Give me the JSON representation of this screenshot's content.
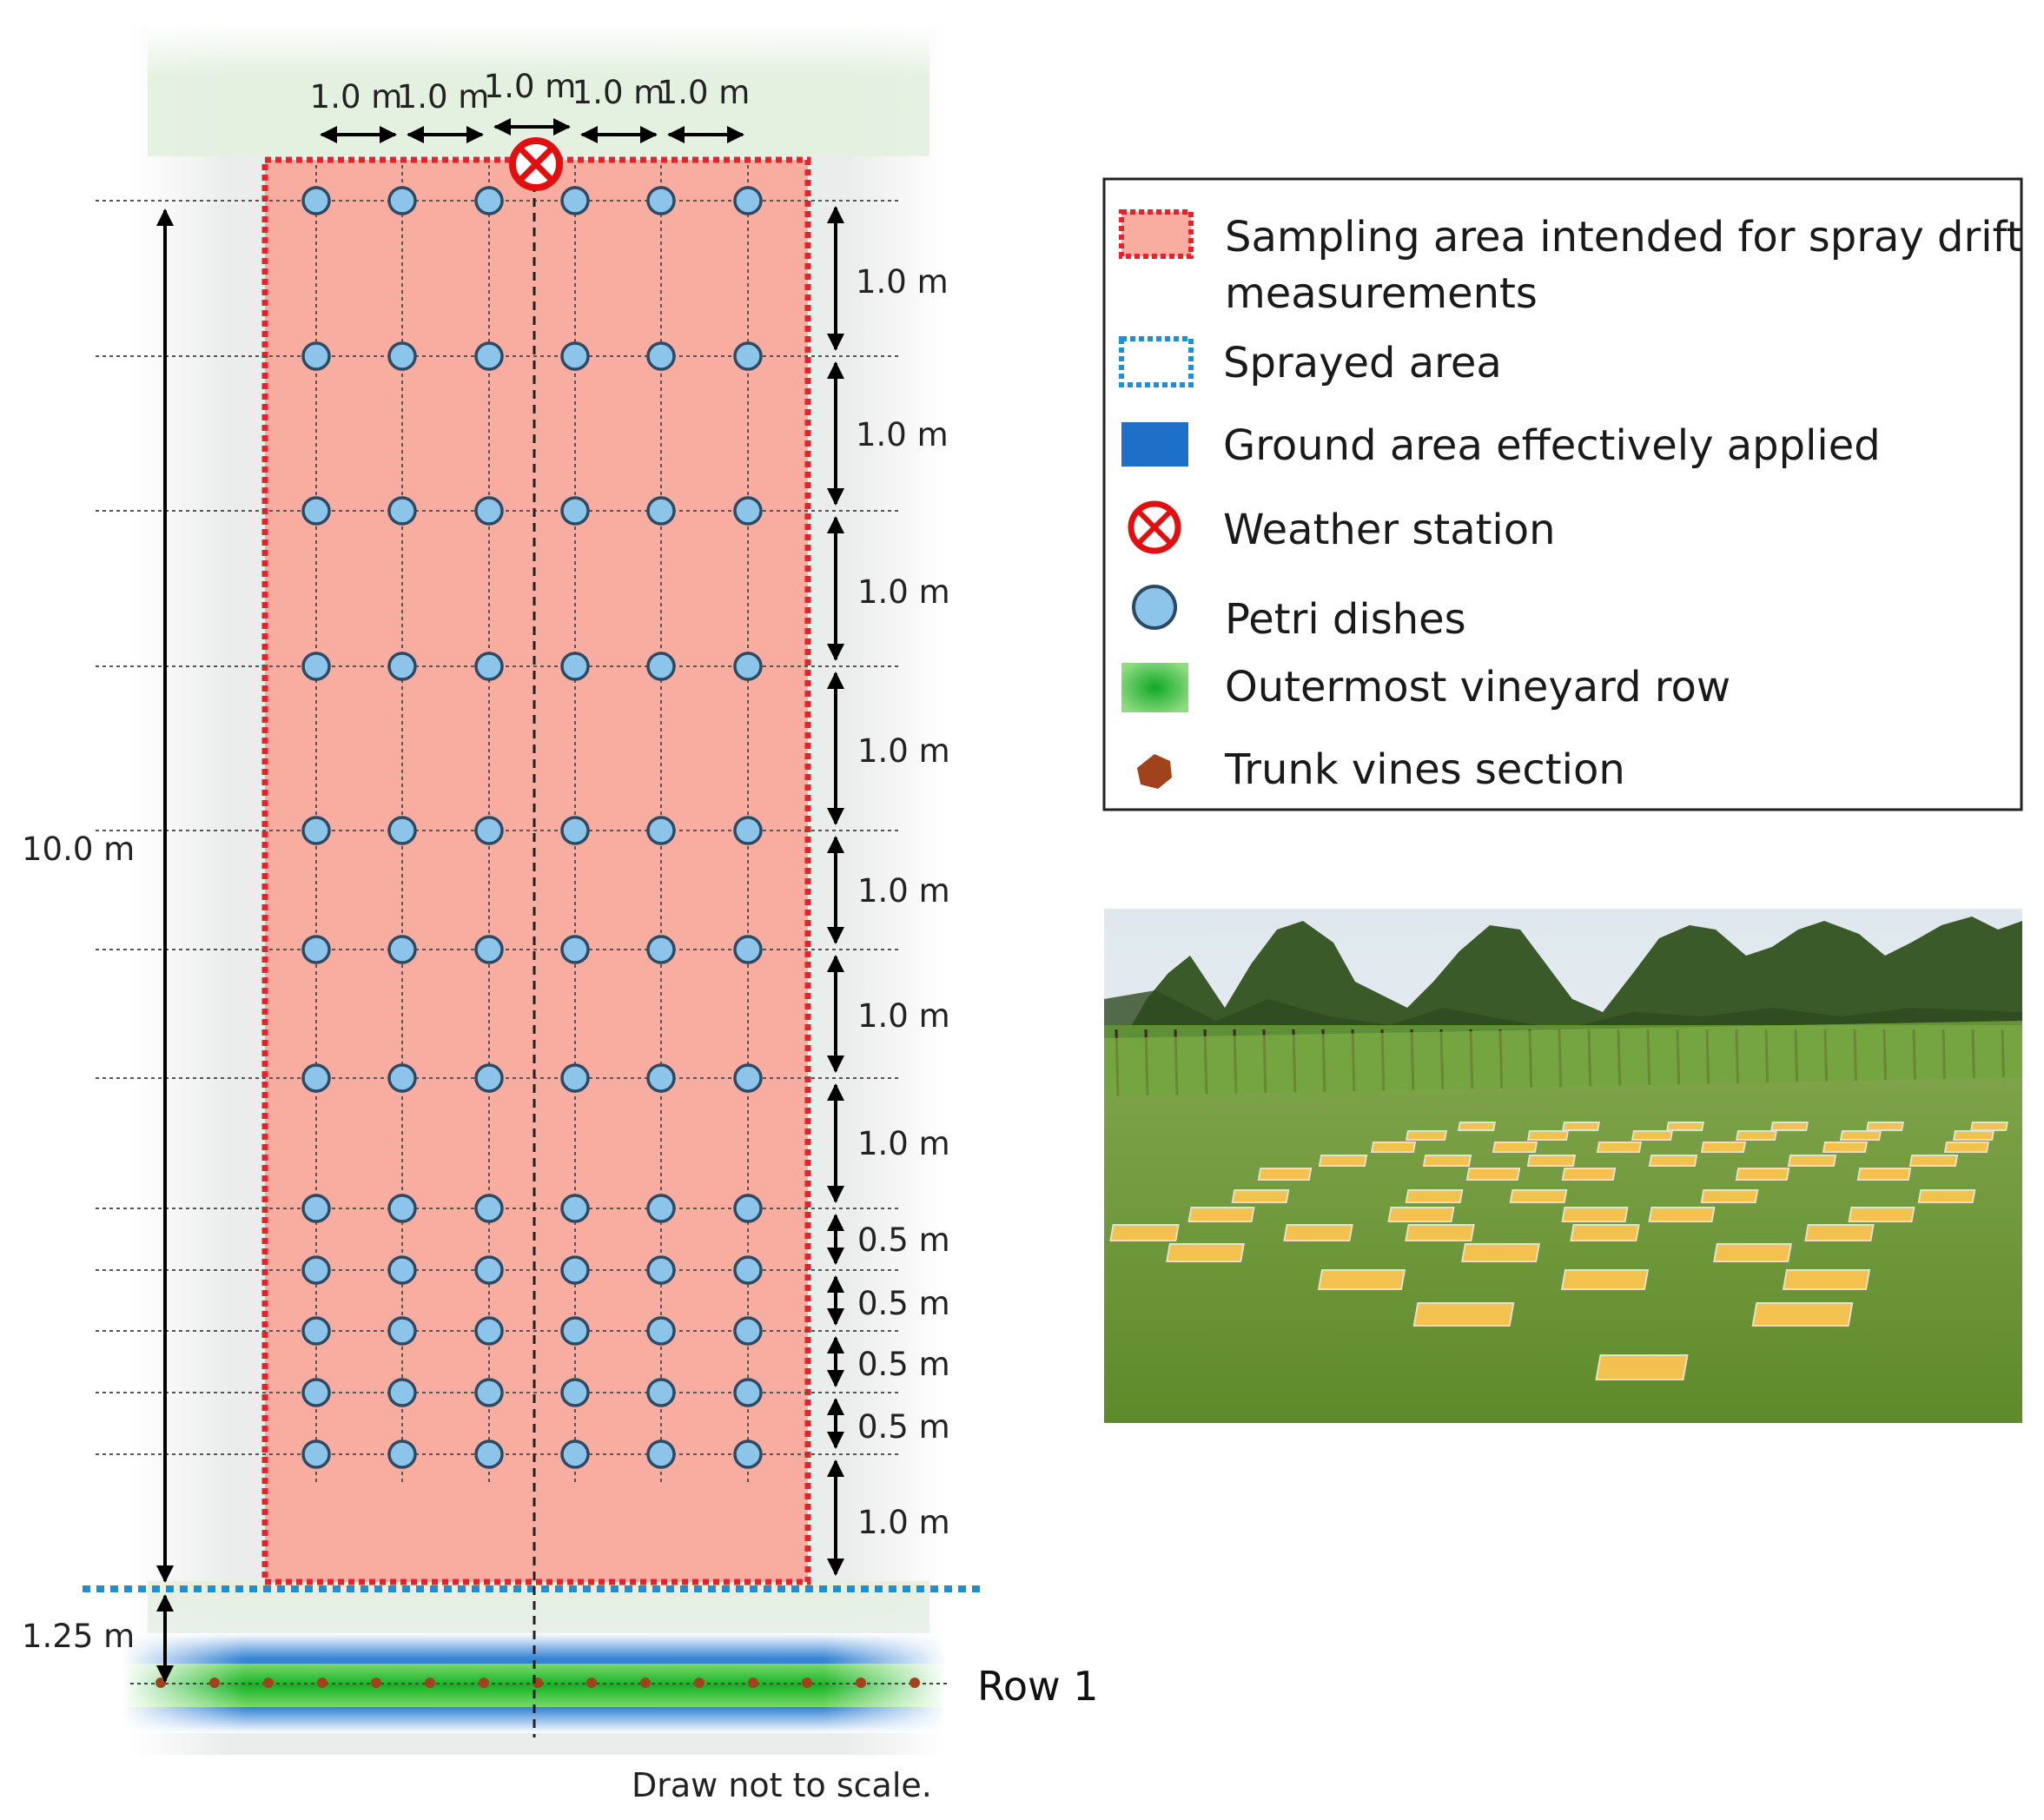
{
  "diagram": {
    "top_spacing_labels": [
      "1.0 m",
      "1.0 m",
      "1.0 m",
      "1.0 m",
      "1.0 m"
    ],
    "right_spacing_labels": [
      "1.0 m",
      "1.0 m",
      "1.0 m",
      "1.0 m",
      "1.0 m",
      "1.0 m",
      "1.0 m",
      "0.5 m",
      "0.5 m",
      "0.5 m",
      "0.5 m",
      "1.0 m"
    ],
    "total_distance_label": "10.0 m",
    "row_offset_label": "1.25 m",
    "row_label": "Row 1",
    "note": "Draw not to scale."
  },
  "legend": {
    "items": [
      {
        "icon": "dotted-red-box-icon",
        "label_line1": "Sampling area intended for spray drift",
        "label_line2": "measurements"
      },
      {
        "icon": "dotted-blue-box-icon",
        "label_line1": "Sprayed area"
      },
      {
        "icon": "blue-rectangle-icon",
        "label_line1": "Ground area effectively applied"
      },
      {
        "icon": "weather-station-icon",
        "label_line1": "Weather station"
      },
      {
        "icon": "petri-dish-icon",
        "label_line1": "Petri dishes"
      },
      {
        "icon": "vineyard-row-icon",
        "label_line1": "Outermost vineyard row"
      },
      {
        "icon": "trunk-vine-icon",
        "label_line1": "Trunk vines section"
      }
    ]
  },
  "photo": {
    "description_icon": "vineyard-field-photo"
  },
  "colors": {
    "sampling_fill": "#f9aca0",
    "sampling_border": "#e8222a",
    "sprayed_border": "#1f8fd0",
    "ground_applied": "#1e6fc8",
    "vineyard_row": "#22c030",
    "petri_fill": "#8cc4ea",
    "petri_stroke": "#2c4a63",
    "trunk": "#a0421c",
    "weather_station": "#e01010"
  }
}
